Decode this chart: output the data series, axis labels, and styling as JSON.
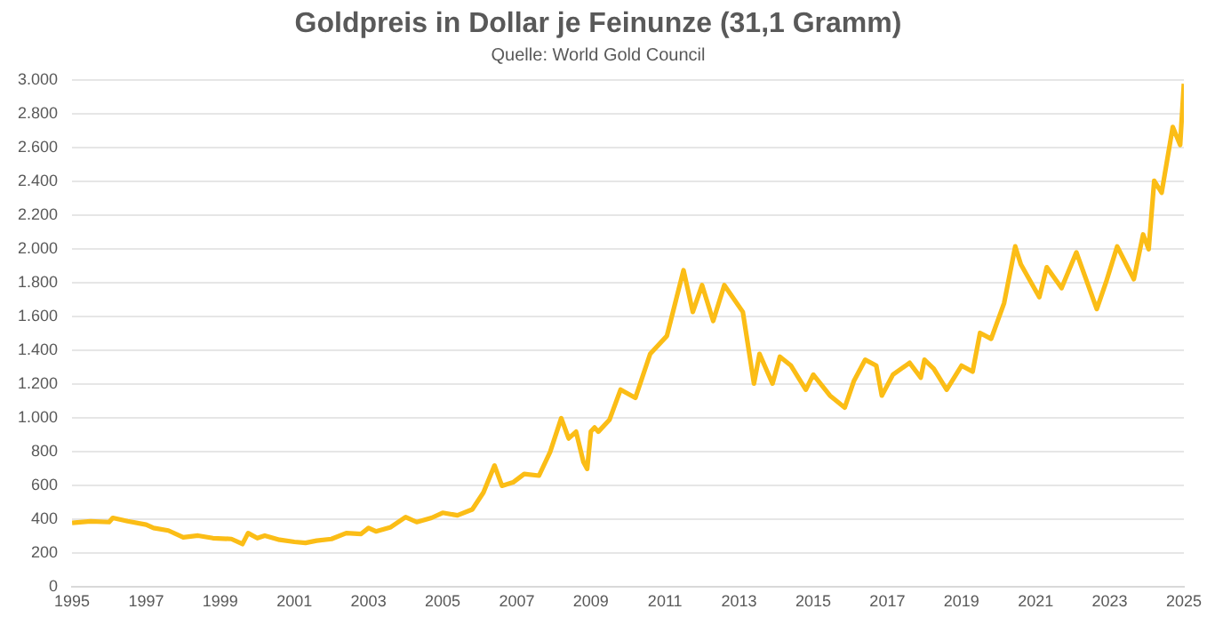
{
  "chart_data": {
    "type": "line",
    "title": "Goldpreis in Dollar je Feinunze (31,1 Gramm)",
    "subtitle": "Quelle: World Gold Council",
    "x": [
      1995.0,
      1995.5,
      1996.0,
      1996.1,
      1996.5,
      1997.0,
      1997.2,
      1997.6,
      1998.0,
      1998.4,
      1998.8,
      1999.3,
      1999.6,
      1999.75,
      2000.0,
      2000.2,
      2000.6,
      2001.0,
      2001.3,
      2001.6,
      2002.0,
      2002.4,
      2002.8,
      2003.0,
      2003.2,
      2003.6,
      2004.0,
      2004.3,
      2004.7,
      2005.0,
      2005.4,
      2005.8,
      2006.1,
      2006.4,
      2006.6,
      2006.9,
      2007.2,
      2007.6,
      2007.9,
      2008.2,
      2008.4,
      2008.6,
      2008.8,
      2008.9,
      2009.0,
      2009.1,
      2009.2,
      2009.5,
      2009.8,
      2010.2,
      2010.6,
      2011.05,
      2011.5,
      2011.75,
      2012.0,
      2012.3,
      2012.6,
      2013.1,
      2013.4,
      2013.55,
      2013.9,
      2014.1,
      2014.4,
      2014.8,
      2015.0,
      2015.45,
      2015.85,
      2016.1,
      2016.4,
      2016.7,
      2016.85,
      2017.15,
      2017.6,
      2017.9,
      2018.0,
      2018.25,
      2018.6,
      2019.0,
      2019.3,
      2019.5,
      2019.8,
      2020.15,
      2020.45,
      2020.6,
      2021.1,
      2021.3,
      2021.7,
      2022.1,
      2022.65,
      2022.9,
      2023.2,
      2023.65,
      2023.9,
      2024.05,
      2024.2,
      2024.4,
      2024.7,
      2024.9,
      2025.0
    ],
    "series": [
      {
        "color": "#fbbd16",
        "values": [
          380,
          390,
          385,
          410,
          390,
          370,
          350,
          335,
          295,
          305,
          290,
          285,
          255,
          320,
          290,
          305,
          280,
          268,
          262,
          275,
          285,
          320,
          315,
          350,
          330,
          355,
          415,
          385,
          410,
          440,
          425,
          460,
          560,
          720,
          600,
          620,
          670,
          660,
          800,
          1000,
          880,
          920,
          740,
          700,
          922,
          945,
          920,
          990,
          1169,
          1120,
          1381,
          1487,
          1876,
          1629,
          1788,
          1576,
          1788,
          1629,
          1205,
          1381,
          1205,
          1364,
          1311,
          1169,
          1258,
          1134,
          1063,
          1222,
          1346,
          1311,
          1134,
          1258,
          1328,
          1240,
          1346,
          1293,
          1169,
          1311,
          1276,
          1505,
          1470,
          1682,
          2017,
          1911,
          1717,
          1894,
          1770,
          1982,
          1646,
          1805,
          2017,
          1823,
          2088,
          2000,
          2406,
          2335,
          2724,
          2618,
          2980
        ]
      }
    ],
    "xlim": [
      1995,
      2025
    ],
    "xticks": [
      1995,
      1997,
      1999,
      2001,
      2003,
      2005,
      2007,
      2009,
      2011,
      2013,
      2015,
      2017,
      2019,
      2021,
      2023,
      2025
    ],
    "ylim": [
      0,
      3000
    ],
    "yticks": [
      0,
      200,
      400,
      600,
      800,
      {
        "value": 1000,
        "label": "1.000"
      },
      {
        "value": 1200,
        "label": "1.200"
      },
      {
        "value": 1400,
        "label": "1.400"
      },
      {
        "value": 1600,
        "label": "1.600"
      },
      {
        "value": 1800,
        "label": "1.800"
      },
      {
        "value": 2000,
        "label": "2.000"
      },
      {
        "value": 2200,
        "label": "2.200"
      },
      {
        "value": 2400,
        "label": "2.400"
      },
      {
        "value": 2600,
        "label": "2.600"
      },
      {
        "value": 2800,
        "label": "2.800"
      },
      {
        "value": 3000,
        "label": "3.000"
      }
    ],
    "grid": "y",
    "legend": false,
    "marker": "none",
    "line_style": "solid"
  }
}
